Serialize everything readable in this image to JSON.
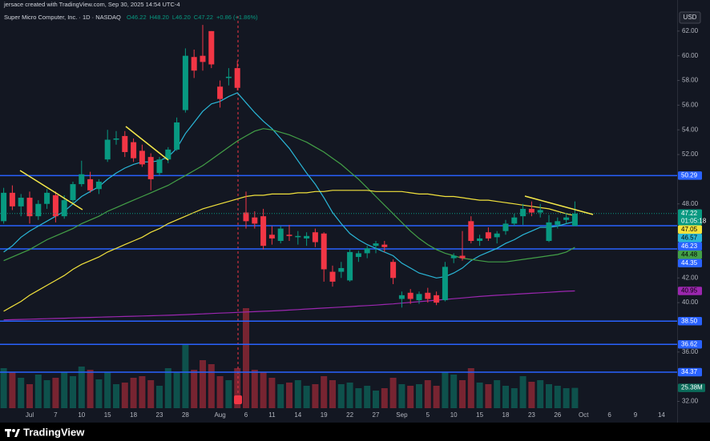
{
  "header": {
    "credit": "jersace created with TradingView.com, Sep 30, 2025 14:54 UTC-4",
    "symbol": "Super Micro Computer, Inc. · 1D · NASDAQ",
    "quote": [
      "O46.22",
      "H48.20",
      "L46.20",
      "C47.22",
      "+0.86 (+1.86%)"
    ],
    "currency": "USD"
  },
  "footer": {
    "logo": "TradingView"
  },
  "chart_data": {
    "type": "candlestick",
    "categories": [
      null,
      null,
      null,
      "Jul",
      null,
      null,
      "7",
      null,
      null,
      "10",
      null,
      null,
      "15",
      null,
      null,
      "18",
      null,
      null,
      "23",
      null,
      null,
      "28",
      null,
      null,
      null,
      "Aug",
      null,
      null,
      "6",
      null,
      null,
      "11",
      null,
      null,
      "14",
      null,
      null,
      "19",
      null,
      null,
      "22",
      null,
      null,
      "27",
      null,
      null,
      "Sep",
      null,
      null,
      "5",
      null,
      null,
      "10",
      null,
      null,
      "15",
      null,
      null,
      "18",
      null,
      null,
      "23",
      null,
      null,
      "26",
      null,
      null,
      "Oct",
      null,
      null,
      "6",
      null,
      null,
      "9",
      null,
      null,
      "14"
    ],
    "open": [
      46.6,
      48.9,
      47.8,
      48.5,
      47.0,
      48.0,
      48.7,
      47.0,
      48.3,
      49.6,
      50.0,
      49.2,
      51.6,
      53.2,
      53.5,
      53.0,
      52.3,
      51.8,
      50.5,
      51.6,
      52.4,
      55.6,
      59.9,
      60.0,
      62.0,
      57.5,
      58.2,
      59.0,
      47.3,
      46.9,
      47.0,
      45.5,
      45.0,
      45.5,
      45.3,
      45.2,
      45.7,
      45.6,
      42.5,
      42.5,
      41.8,
      43.7,
      44.0,
      44.6,
      44.7,
      43.3,
      40.3,
      40.8,
      40.2,
      40.8,
      40.6,
      40.2,
      43.6,
      43.8,
      46.6,
      45.0,
      45.7,
      45.3,
      45.8,
      46.4,
      47.0,
      47.6,
      47.3,
      45.0,
      46.3,
      46.7,
      46.22,
      null,
      null,
      null,
      null,
      null,
      null,
      null,
      null,
      null,
      null
    ],
    "high": [
      49.3,
      49.5,
      48.8,
      49.0,
      48.3,
      49.2,
      49.0,
      48.7,
      49.8,
      51.5,
      50.6,
      50.0,
      54.0,
      53.9,
      53.9,
      53.3,
      52.8,
      52.1,
      51.8,
      52.6,
      55.0,
      60.6,
      60.5,
      62.5,
      62.0,
      58.0,
      59.0,
      59.6,
      49.0,
      47.4,
      47.6,
      46.2,
      46.2,
      46.3,
      45.8,
      45.7,
      46.0,
      45.7,
      43.0,
      43.3,
      44.3,
      44.2,
      44.6,
      45.0,
      45.0,
      43.5,
      40.9,
      41.1,
      40.9,
      41.2,
      40.9,
      43.3,
      44.0,
      45.8,
      47.0,
      45.5,
      46.1,
      45.8,
      46.7,
      47.2,
      48.0,
      48.2,
      48.0,
      47.1,
      46.9,
      47.2,
      48.2,
      null,
      null,
      null,
      null,
      null,
      null,
      null,
      null,
      null,
      null
    ],
    "low": [
      46.4,
      47.5,
      47.0,
      46.4,
      46.7,
      47.6,
      46.5,
      46.8,
      48.0,
      49.4,
      48.9,
      48.8,
      51.4,
      52.8,
      51.8,
      51.4,
      51.0,
      49.1,
      50.3,
      51.3,
      52.3,
      55.4,
      58.2,
      58.8,
      59.0,
      55.8,
      57.6,
      57.2,
      46.0,
      46.0,
      44.3,
      44.7,
      44.8,
      45.0,
      44.7,
      44.6,
      44.5,
      41.7,
      41.3,
      42.0,
      41.7,
      43.3,
      43.6,
      44.0,
      44.1,
      41.5,
      39.6,
      39.9,
      39.9,
      40.0,
      39.8,
      40.1,
      43.2,
      43.4,
      44.8,
      44.6,
      45.0,
      44.8,
      45.5,
      46.2,
      46.3,
      47.0,
      46.9,
      44.9,
      46.0,
      46.4,
      46.2,
      null,
      null,
      null,
      null,
      null,
      null,
      null,
      null,
      null,
      null
    ],
    "close": [
      48.9,
      47.8,
      48.5,
      47.0,
      48.0,
      48.9,
      47.0,
      48.3,
      49.6,
      50.4,
      49.1,
      49.8,
      53.2,
      53.3,
      52.2,
      51.7,
      51.2,
      50.0,
      51.6,
      52.4,
      54.6,
      60.0,
      58.8,
      59.5,
      59.3,
      56.5,
      58.3,
      57.4,
      46.6,
      46.4,
      44.6,
      45.2,
      46.0,
      45.4,
      45.4,
      45.4,
      44.9,
      42.7,
      41.7,
      42.8,
      44.1,
      44.0,
      44.4,
      44.8,
      44.5,
      42.0,
      40.6,
      40.3,
      40.7,
      40.3,
      40.0,
      42.9,
      43.8,
      43.6,
      45.0,
      45.2,
      45.2,
      45.6,
      46.4,
      46.9,
      47.6,
      47.3,
      47.5,
      46.5,
      46.6,
      46.9,
      47.22,
      null,
      null,
      null,
      null,
      null,
      null,
      null,
      null,
      null,
      null
    ],
    "up_color": "#089981",
    "down_color": "#f23645",
    "volume": {
      "values": [
        50000000,
        45000000,
        38000000,
        30000000,
        42000000,
        35000000,
        38000000,
        45000000,
        40000000,
        52000000,
        48000000,
        36000000,
        45000000,
        30000000,
        32000000,
        38000000,
        40000000,
        35000000,
        28000000,
        50000000,
        45000000,
        80000000,
        48000000,
        60000000,
        55000000,
        40000000,
        35000000,
        50000000,
        125000000,
        48000000,
        45000000,
        38000000,
        30000000,
        32000000,
        35000000,
        28000000,
        30000000,
        40000000,
        35000000,
        30000000,
        32000000,
        25000000,
        28000000,
        22000000,
        25000000,
        38000000,
        30000000,
        28000000,
        30000000,
        35000000,
        28000000,
        45000000,
        42000000,
        35000000,
        50000000,
        32000000,
        30000000,
        35000000,
        28000000,
        25000000,
        40000000,
        33000000,
        35000000,
        30000000,
        28000000,
        25000000,
        25380000,
        null,
        null,
        null,
        null,
        null,
        null,
        null,
        null,
        null,
        null
      ],
      "last_label": "25.38M",
      "up_color": "rgba(8,153,129,0.45)",
      "down_color": "rgba(242,54,69,0.45)",
      "tag_color": "#0b6b5a"
    },
    "series": [
      {
        "color": "#2ab7d8",
        "values": [
          44.1,
          44.6,
          45.3,
          45.8,
          46.2,
          46.6,
          47.0,
          47.4,
          48.0,
          48.6,
          49.0,
          49.4,
          50.0,
          50.5,
          50.9,
          51.2,
          51.4,
          51.4,
          51.5,
          51.8,
          52.5,
          53.7,
          54.6,
          55.5,
          56.1,
          56.3,
          56.7,
          57.0,
          56.2,
          55.4,
          54.7,
          54.1,
          53.3,
          52.5,
          51.5,
          50.5,
          49.6,
          48.5,
          47.3,
          46.4,
          45.6,
          45.1,
          44.7,
          44.4,
          44.1,
          43.8,
          43.2,
          42.8,
          42.4,
          42.2,
          42.0,
          42.1,
          42.4,
          42.8,
          43.4,
          43.8,
          44.1,
          44.4,
          44.8,
          45.1,
          45.5,
          45.8,
          46.1,
          46.1,
          46.2,
          46.4,
          46.57,
          null,
          null,
          null,
          null,
          null,
          null,
          null,
          null,
          null,
          null
        ]
      },
      {
        "color": "#43a047",
        "values": [
          43.4,
          43.7,
          44.0,
          44.3,
          44.7,
          45.1,
          45.4,
          45.7,
          46.0,
          46.4,
          46.7,
          47.0,
          47.4,
          47.7,
          48.0,
          48.3,
          48.6,
          48.9,
          49.2,
          49.5,
          49.9,
          50.3,
          50.7,
          51.1,
          51.6,
          52.1,
          52.6,
          53.1,
          53.5,
          53.9,
          54.1,
          54.0,
          53.8,
          53.6,
          53.3,
          53.0,
          52.6,
          52.2,
          51.7,
          51.2,
          50.6,
          50.0,
          49.3,
          48.6,
          47.9,
          47.2,
          46.5,
          45.8,
          45.2,
          44.7,
          44.3,
          44.0,
          43.8,
          43.6,
          43.5,
          43.4,
          43.3,
          43.3,
          43.3,
          43.4,
          43.5,
          43.6,
          43.7,
          43.8,
          43.9,
          44.1,
          44.48,
          null,
          null,
          null,
          null,
          null,
          null,
          null,
          null,
          null,
          null
        ]
      },
      {
        "color": "#f2e23c",
        "values": [
          39.3,
          39.7,
          40.1,
          40.6,
          41.0,
          41.4,
          41.8,
          42.2,
          42.7,
          43.1,
          43.4,
          43.7,
          44.1,
          44.4,
          44.7,
          45.0,
          45.3,
          45.7,
          46.0,
          46.4,
          46.7,
          47.0,
          47.3,
          47.6,
          47.8,
          48.0,
          48.2,
          48.4,
          48.6,
          48.7,
          48.7,
          48.8,
          48.8,
          48.8,
          48.9,
          48.9,
          49.0,
          49.0,
          49.1,
          49.1,
          49.1,
          49.1,
          49.1,
          49.0,
          49.0,
          49.0,
          49.0,
          48.9,
          48.8,
          48.8,
          48.7,
          48.6,
          48.6,
          48.5,
          48.4,
          48.3,
          48.3,
          48.2,
          48.1,
          48.0,
          47.9,
          47.8,
          47.7,
          47.6,
          47.4,
          47.2,
          47.05,
          null,
          null,
          null,
          null,
          null,
          null,
          null,
          null,
          null,
          null
        ]
      },
      {
        "color": "#9c27b0",
        "values": [
          38.6,
          38.62,
          38.64,
          38.66,
          38.68,
          38.7,
          38.72,
          38.74,
          38.76,
          38.78,
          38.8,
          38.82,
          38.84,
          38.86,
          38.88,
          38.9,
          38.92,
          38.94,
          38.96,
          38.98,
          39.0,
          39.03,
          39.06,
          39.09,
          39.12,
          39.15,
          39.18,
          39.21,
          39.24,
          39.27,
          39.3,
          39.33,
          39.36,
          39.4,
          39.44,
          39.48,
          39.52,
          39.56,
          39.6,
          39.64,
          39.68,
          39.72,
          39.76,
          39.8,
          39.85,
          39.9,
          39.96,
          40.02,
          40.08,
          40.14,
          40.2,
          40.26,
          40.32,
          40.38,
          40.44,
          40.5,
          40.55,
          40.6,
          40.64,
          40.68,
          40.72,
          40.76,
          40.8,
          40.84,
          40.88,
          40.92,
          40.95,
          null,
          null,
          null,
          null,
          null,
          null,
          null,
          null,
          null,
          null
        ]
      }
    ],
    "levels": [
      {
        "value": 50.29,
        "label": "50.29"
      },
      {
        "value": 46.23,
        "label": "46.23"
      },
      {
        "value": 44.35,
        "label": "44.35"
      },
      {
        "value": 38.5,
        "label": "38.50"
      },
      {
        "value": 36.62,
        "label": "36.62"
      },
      {
        "value": 34.37,
        "label": "34.37"
      }
    ],
    "level_color": "#2962ff",
    "countdown": "01:05:18",
    "ylim": [
      30.8,
      64.0
    ],
    "yticks": [
      {
        "value": 62,
        "label": "62.00"
      },
      {
        "value": 60,
        "label": "60.00"
      },
      {
        "value": 58,
        "label": "58.00"
      },
      {
        "value": 56,
        "label": "56.00"
      },
      {
        "value": 54,
        "label": "54.00"
      },
      {
        "value": 52,
        "label": "52.00"
      },
      {
        "value": 48,
        "label": "48.00"
      },
      {
        "value": 42,
        "label": "42.00"
      },
      {
        "value": 40,
        "label": "40.00"
      },
      {
        "value": 36,
        "label": "36.00"
      },
      {
        "value": 32,
        "label": "32.00"
      }
    ]
  }
}
